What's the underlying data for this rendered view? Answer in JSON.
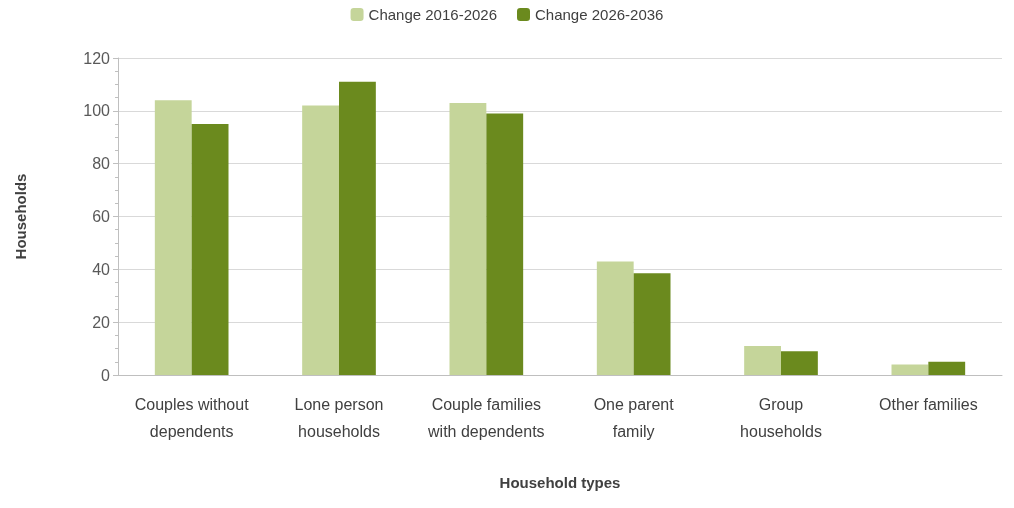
{
  "chart_data": {
    "type": "bar",
    "xlabel": "Household types",
    "ylabel": "Households",
    "categories": [
      "Couples without\ndependents",
      "Lone person\nhouseholds",
      "Couple families\nwith dependents",
      "One parent\nfamily",
      "Group\nhouseholds",
      "Other families"
    ],
    "series": [
      {
        "name": "Change 2016-2026",
        "color": "#c5d59a",
        "values": [
          104,
          102,
          103,
          43,
          11,
          4
        ]
      },
      {
        "name": "Change 2026-2036",
        "color": "#6b8a1e",
        "values": [
          95,
          111,
          99,
          38.5,
          9,
          5
        ]
      }
    ],
    "ylim": [
      0,
      120
    ],
    "yticks": [
      0,
      20,
      40,
      60,
      80,
      100,
      120
    ],
    "grid": "y",
    "legend": "top"
  }
}
